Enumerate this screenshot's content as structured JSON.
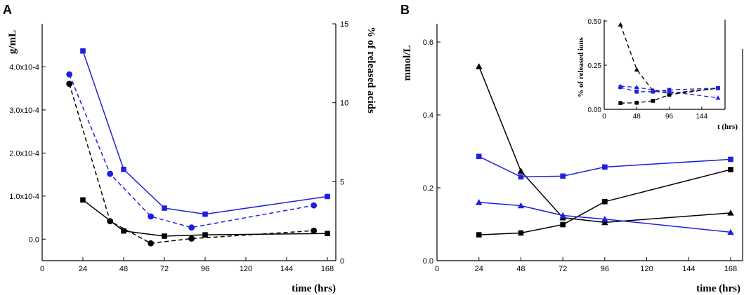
{
  "chart_data": [
    {
      "id": "A",
      "type": "line",
      "panel_label": "A",
      "xlabel": "time (hrs)",
      "ylabel": "g/mL",
      "y2label": "% of released acids",
      "xlim": [
        0,
        168
      ],
      "ylim": [
        -5e-05,
        0.0005
      ],
      "y2lim": [
        0,
        15
      ],
      "xticks": [
        "0",
        "24",
        "48",
        "72",
        "96",
        "120",
        "144",
        "168"
      ],
      "yticks": [
        "0.0",
        "1.0x10-4",
        "2.0x10-4",
        "3.0x10-4",
        "4.0x10-4"
      ],
      "y2ticks": [
        "0",
        "5",
        "10",
        "15"
      ],
      "grid": false,
      "series": [
        {
          "name": "black squares (g/mL)",
          "axis": "left",
          "color": "#000000",
          "marker": "square",
          "dash": "solid",
          "x": [
            24,
            48,
            72,
            96,
            168
          ],
          "y": [
            9.1e-05,
            1.9e-05,
            7e-06,
            1e-05,
            1.3e-05
          ]
        },
        {
          "name": "blue squares (g/mL)",
          "axis": "left",
          "color": "#1f1fe0",
          "marker": "square",
          "dash": "solid",
          "x": [
            24,
            48,
            72,
            96,
            168
          ],
          "y": [
            0.000437,
            0.000162,
            7.2e-05,
            5.8e-05,
            9.9e-05
          ]
        },
        {
          "name": "black circles (% released)",
          "axis": "right",
          "color": "#000000",
          "marker": "circle",
          "dash": "dashed",
          "x": [
            16,
            40,
            64,
            88,
            160
          ],
          "y": [
            11.2,
            2.5,
            1.1,
            1.4,
            1.9
          ]
        },
        {
          "name": "blue circles (% released)",
          "axis": "right",
          "color": "#1f1fe0",
          "marker": "circle",
          "dash": "dashed",
          "x": [
            16,
            40,
            64,
            88,
            160
          ],
          "y": [
            11.8,
            5.5,
            2.8,
            2.1,
            3.5
          ]
        }
      ]
    },
    {
      "id": "B",
      "type": "line",
      "panel_label": "B",
      "xlabel": "time (hrs)",
      "ylabel": "mmol/L",
      "xlim": [
        0,
        168
      ],
      "ylim": [
        0,
        0.65
      ],
      "xticks": [
        "0",
        "24",
        "48",
        "72",
        "96",
        "120",
        "144",
        "168"
      ],
      "yticks": [
        "0.0",
        "0.2",
        "0.4",
        "0.6"
      ],
      "grid": false,
      "series": [
        {
          "name": "black triangles",
          "color": "#000000",
          "marker": "triangle",
          "dash": "solid",
          "x": [
            24,
            48,
            72,
            96,
            168
          ],
          "y": [
            0.533,
            0.246,
            0.118,
            0.105,
            0.131
          ]
        },
        {
          "name": "black squares",
          "color": "#000000",
          "marker": "square",
          "dash": "solid",
          "x": [
            24,
            48,
            72,
            96,
            168
          ],
          "y": [
            0.071,
            0.076,
            0.099,
            0.162,
            0.25
          ]
        },
        {
          "name": "blue squares",
          "color": "#1f1fe0",
          "marker": "square",
          "dash": "solid",
          "x": [
            24,
            48,
            72,
            96,
            168
          ],
          "y": [
            0.286,
            0.23,
            0.232,
            0.257,
            0.278
          ]
        },
        {
          "name": "blue triangles",
          "color": "#1f1fe0",
          "marker": "triangle",
          "dash": "solid",
          "x": [
            24,
            48,
            72,
            96,
            168
          ],
          "y": [
            0.16,
            0.151,
            0.124,
            0.114,
            0.078
          ]
        }
      ]
    },
    {
      "id": "B-inset",
      "type": "line",
      "xlabel": "t (hrs)",
      "ylabel": "% of released ions",
      "xlim": [
        0,
        168
      ],
      "ylim": [
        0,
        0.5
      ],
      "xticks": [
        "0",
        "48",
        "96",
        "144"
      ],
      "yticks": [
        "0.00",
        "0.25",
        "0.50"
      ],
      "grid": false,
      "series": [
        {
          "name": "black triangles",
          "color": "#000000",
          "marker": "triangle",
          "dash": "dashed",
          "x": [
            24,
            48,
            72,
            96,
            168
          ],
          "y": [
            0.48,
            0.225,
            0.105,
            0.09,
            0.12
          ]
        },
        {
          "name": "black squares",
          "color": "#000000",
          "marker": "square",
          "dash": "dashed",
          "x": [
            24,
            48,
            72,
            96,
            168
          ],
          "y": [
            0.035,
            0.037,
            0.048,
            0.083,
            0.12
          ]
        },
        {
          "name": "blue squares",
          "color": "#1f1fe0",
          "marker": "square",
          "dash": "dashed",
          "x": [
            24,
            48,
            72,
            96,
            168
          ],
          "y": [
            0.125,
            0.1,
            0.1,
            0.11,
            0.12
          ]
        },
        {
          "name": "blue triangles",
          "color": "#1f1fe0",
          "marker": "triangle",
          "dash": "dashed",
          "x": [
            24,
            48,
            72,
            96,
            168
          ],
          "y": [
            0.13,
            0.125,
            0.11,
            0.1,
            0.065
          ]
        }
      ]
    }
  ]
}
